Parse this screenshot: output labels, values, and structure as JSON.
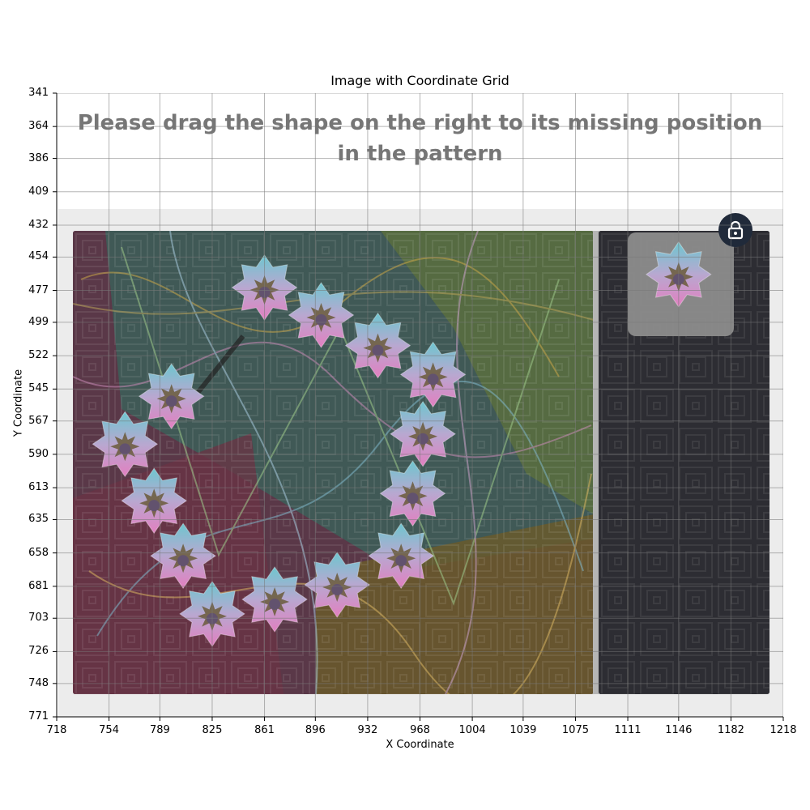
{
  "chart": {
    "title": "Image with Coordinate Grid",
    "xlabel": "X Coordinate",
    "ylabel": "Y Coordinate",
    "x_ticks": [
      "718",
      "754",
      "789",
      "825",
      "861",
      "896",
      "932",
      "968",
      "1004",
      "1039",
      "1075",
      "1111",
      "1146",
      "1182",
      "1218"
    ],
    "y_ticks": [
      "341",
      "364",
      "386",
      "409",
      "432",
      "454",
      "477",
      "499",
      "522",
      "545",
      "567",
      "590",
      "613",
      "635",
      "658",
      "681",
      "703",
      "726",
      "748",
      "771"
    ]
  },
  "captcha": {
    "instruction": "Please drag the shape on the right to its missing position in the pattern",
    "piece_shapes": [
      {
        "x": 861,
        "y": 475
      },
      {
        "x": 900,
        "y": 494
      },
      {
        "x": 939,
        "y": 515
      },
      {
        "x": 977,
        "y": 535
      },
      {
        "x": 970,
        "y": 576
      },
      {
        "x": 963,
        "y": 617
      },
      {
        "x": 955,
        "y": 660
      },
      {
        "x": 911,
        "y": 680
      },
      {
        "x": 868,
        "y": 690
      },
      {
        "x": 825,
        "y": 700
      },
      {
        "x": 805,
        "y": 660
      },
      {
        "x": 785,
        "y": 622
      },
      {
        "x": 765,
        "y": 583
      },
      {
        "x": 797,
        "y": 550
      }
    ],
    "draggable_shape": {
      "x": 1146,
      "y": 466
    },
    "lock_icon": "lock-icon",
    "colors": {
      "board_bg": "#5a3848",
      "tray_bg": "#2d2d33",
      "lock_bg": "#202a3a",
      "shape_top": "#6ec6cf",
      "shape_bottom": "#e27fc0",
      "shape_core": "#6a5a3a"
    }
  }
}
